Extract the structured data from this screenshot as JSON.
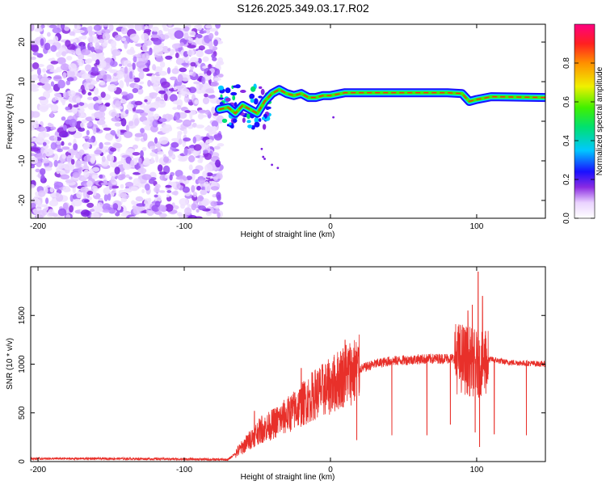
{
  "title": "S126.2025.349.03.17.R02",
  "chart_data": [
    {
      "type": "heatmap",
      "name": "spectrogram",
      "xlabel": "Height of straight line (km)",
      "ylabel": "Frequency (Hz)",
      "xlim": [
        -205,
        147
      ],
      "ylim": [
        -24.5,
        24.5
      ],
      "xticks": [
        -200,
        -100,
        0,
        100
      ],
      "yticks": [
        -20,
        -10,
        0,
        10,
        20
      ],
      "noise_region_x": [
        -205,
        -75
      ],
      "tone_track": [
        {
          "x": -76,
          "y": 3
        },
        {
          "x": -70,
          "y": 3.5
        },
        {
          "x": -65,
          "y": 2
        },
        {
          "x": -60,
          "y": 4
        },
        {
          "x": -55,
          "y": 3
        },
        {
          "x": -50,
          "y": 2
        },
        {
          "x": -45,
          "y": 5
        },
        {
          "x": -40,
          "y": 7
        },
        {
          "x": -35,
          "y": 8
        },
        {
          "x": -30,
          "y": 7
        },
        {
          "x": -25,
          "y": 6.5
        },
        {
          "x": -20,
          "y": 7
        },
        {
          "x": -15,
          "y": 6
        },
        {
          "x": -10,
          "y": 6
        },
        {
          "x": -5,
          "y": 6.5
        },
        {
          "x": 0,
          "y": 6.5
        },
        {
          "x": 10,
          "y": 7.2
        },
        {
          "x": 30,
          "y": 7.2
        },
        {
          "x": 60,
          "y": 7.2
        },
        {
          "x": 80,
          "y": 7.2
        },
        {
          "x": 90,
          "y": 7
        },
        {
          "x": 95,
          "y": 5
        },
        {
          "x": 100,
          "y": 5.5
        },
        {
          "x": 110,
          "y": 6.2
        },
        {
          "x": 147,
          "y": 6
        }
      ],
      "colorbar": {
        "label": "Normalized spectral amplitude",
        "range": [
          0,
          1
        ],
        "ticks": [
          "0.0",
          "0.2",
          "0.4",
          "0.6",
          "0.8"
        ]
      }
    },
    {
      "type": "line",
      "name": "snr",
      "xlabel": "Height of straight line (km)",
      "ylabel": "SNR (10 * v/v)",
      "xlim": [
        -205,
        147
      ],
      "ylim": [
        0,
        2000
      ],
      "xticks": [
        -200,
        -100,
        0,
        100
      ],
      "yticks": [
        0,
        500,
        1000,
        1500
      ],
      "color": "#e8302a",
      "x": [
        -205,
        -150,
        -100,
        -70,
        -60,
        -50,
        -40,
        -30,
        -20,
        -10,
        0,
        10,
        20,
        30,
        40,
        60,
        80,
        90,
        100,
        110,
        120,
        147
      ],
      "y": [
        30,
        30,
        25,
        20,
        150,
        300,
        380,
        470,
        580,
        700,
        770,
        900,
        950,
        1000,
        1030,
        1050,
        1060,
        1060,
        1000,
        1050,
        1020,
        1000
      ],
      "spikes": [
        {
          "x": -52,
          "y": 520
        },
        {
          "x": -47,
          "y": 470
        },
        {
          "x": -35,
          "y": 440
        },
        {
          "x": -29,
          "y": 380
        },
        {
          "x": -20,
          "y": 960
        },
        {
          "x": -14,
          "y": 550
        },
        {
          "x": -7,
          "y": 780
        },
        {
          "x": -5,
          "y": 600
        },
        {
          "x": 10,
          "y": 1250
        },
        {
          "x": 18,
          "y": 220
        },
        {
          "x": 42,
          "y": 270
        },
        {
          "x": 66,
          "y": 270
        },
        {
          "x": 82,
          "y": 380
        },
        {
          "x": 88,
          "y": 1300
        },
        {
          "x": 94,
          "y": 1550
        },
        {
          "x": 97,
          "y": 1610
        },
        {
          "x": 99,
          "y": 300
        },
        {
          "x": 101,
          "y": 1950
        },
        {
          "x": 102,
          "y": 150
        },
        {
          "x": 104,
          "y": 1700
        },
        {
          "x": 106,
          "y": 1340
        },
        {
          "x": 112,
          "y": 280
        },
        {
          "x": 134,
          "y": 270
        }
      ]
    }
  ]
}
